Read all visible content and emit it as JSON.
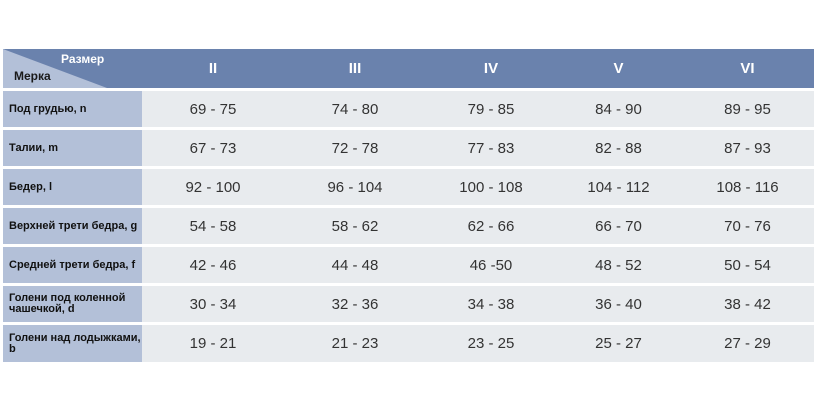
{
  "header": {
    "size_label": "Размер",
    "measure_label": "Мерка",
    "sizes": [
      "II",
      "III",
      "IV",
      "V",
      "VI"
    ]
  },
  "rows": [
    {
      "label": "Под грудью, n",
      "values": [
        "69 - 75",
        "74 - 80",
        "79 - 85",
        "84 - 90",
        "89 - 95"
      ]
    },
    {
      "label": "Талии, m",
      "values": [
        "67 - 73",
        "72 - 78",
        "77 - 83",
        "82 - 88",
        "87 - 93"
      ]
    },
    {
      "label": "Бедер, l",
      "values": [
        "92 - 100",
        "96 - 104",
        "100 - 108",
        "104 - 112",
        "108 - 116"
      ]
    },
    {
      "label": "Верхней трети бедра, g",
      "values": [
        "54 - 58",
        "58 - 62",
        "62 - 66",
        "66 - 70",
        "70 - 76"
      ]
    },
    {
      "label": "Средней трети бедра, f",
      "values": [
        "42 - 46",
        "44 - 48",
        "46 -50",
        "48 - 52",
        "50 - 54"
      ]
    },
    {
      "label": "Голени под коленной чашечкой, d",
      "values": [
        "30 - 34",
        "32 - 36",
        "34 - 38",
        "36 - 40",
        "38 - 42"
      ]
    },
    {
      "label": "Голени над лодыжками, b",
      "values": [
        "19 - 21",
        "21 - 23",
        "23 - 25",
        "25 - 27",
        "27 - 29"
      ]
    }
  ],
  "colors": {
    "header": "#6a82ad",
    "label_cell": "#b3c0d8",
    "data_cell": "#e8ebee"
  }
}
